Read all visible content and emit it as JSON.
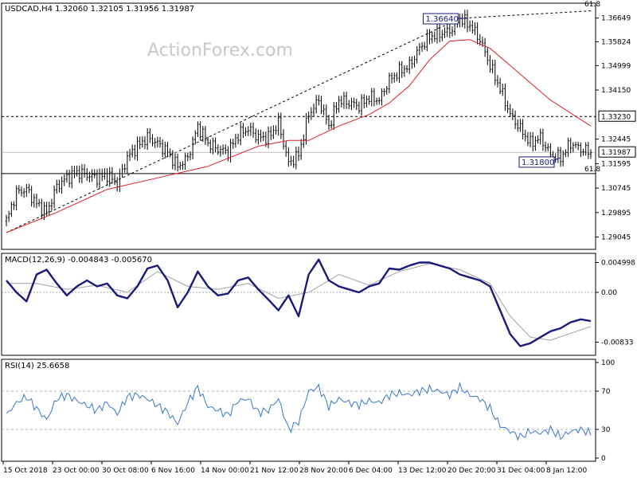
{
  "header": {
    "symbol_line": "USDCAD,H4  1.32060 1.32105 1.31956 1.31987",
    "watermark": "ActionForex.com"
  },
  "colors": {
    "candle": "#000000",
    "ma": "#e0202a",
    "macd": "#1a1a7a",
    "signal": "#a0a0a0",
    "rsi": "#3a78c8",
    "trendline": "#000000",
    "level_box_border": "#1a1a7a"
  },
  "chart_data": [
    {
      "type": "line",
      "title": "USDCAD,H4",
      "panel": "price",
      "ylim": [
        1.287,
        1.37
      ],
      "y_ticks": [
        "1.36649",
        "1.35824",
        "1.34999",
        "1.34150",
        "1.33230",
        "1.32445",
        "1.31987",
        "1.31595",
        "1.30745",
        "1.29895",
        "1.29045"
      ],
      "x_ticks": [
        "15 Oct 2018",
        "23 Oct 00:00",
        "30 Oct 08:00",
        "6 Nov 16:00",
        "14 Nov 00:00",
        "21 Nov 12:00",
        "28 Nov 20:00",
        "6 Dec 04:00",
        "13 Dec 12:00",
        "20 Dec 20:00",
        "31 Dec 04:00",
        "8 Jan 12:00"
      ],
      "series": [
        {
          "kind": "close",
          "x": [
            0,
            4,
            8,
            12,
            16,
            20,
            24,
            28,
            32,
            36,
            40,
            44,
            48,
            52,
            56,
            60,
            64,
            68,
            72,
            76,
            80,
            84,
            88,
            92,
            96,
            100,
            104,
            108,
            112,
            116,
            120,
            124,
            128,
            132,
            136,
            140,
            144,
            148,
            152,
            156,
            160,
            164,
            168,
            172,
            176,
            180,
            184,
            188,
            192,
            196,
            200,
            204,
            208,
            212,
            216,
            220,
            224,
            228,
            232
          ],
          "values": [
            1.296,
            1.306,
            1.307,
            1.302,
            1.299,
            1.308,
            1.311,
            1.313,
            1.312,
            1.311,
            1.312,
            1.309,
            1.318,
            1.322,
            1.325,
            1.323,
            1.32,
            1.315,
            1.318,
            1.329,
            1.323,
            1.321,
            1.32,
            1.326,
            1.328,
            1.325,
            1.325,
            1.33,
            1.316,
            1.319,
            1.333,
            1.338,
            1.329,
            1.338,
            1.337,
            1.336,
            1.339,
            1.338,
            1.345,
            1.348,
            1.35,
            1.356,
            1.36,
            1.361,
            1.362,
            1.3664,
            1.364,
            1.359,
            1.35,
            1.342,
            1.333,
            1.328,
            1.323,
            1.325,
            1.319,
            1.318,
            1.323,
            1.321,
            1.3199
          ]
        },
        {
          "kind": "moving_average",
          "x": [
            0,
            20,
            40,
            60,
            80,
            100,
            112,
            120,
            132,
            144,
            152,
            160,
            168,
            176,
            184,
            192,
            200,
            208,
            216,
            232
          ],
          "values": [
            1.292,
            1.299,
            1.307,
            1.311,
            1.315,
            1.322,
            1.324,
            1.324,
            1.329,
            1.333,
            1.337,
            1.343,
            1.352,
            1.3585,
            1.359,
            1.356,
            1.35,
            1.344,
            1.338,
            1.329
          ]
        }
      ],
      "annotations": [
        {
          "label": "1.36640",
          "price": 1.3664
        },
        {
          "label": "1.31800",
          "price": 1.318
        },
        {
          "label": "61.8",
          "price": 1.369,
          "note": "top"
        },
        {
          "label": "61.8",
          "price": 1.3125,
          "note": "lower"
        },
        {
          "label": "1.33230",
          "price": 1.3323,
          "kind": "level"
        },
        {
          "label": "1.31987",
          "price": 1.31987,
          "kind": "current"
        }
      ]
    },
    {
      "type": "line",
      "title": "MACD(12,26,9) -0.004843 -0.005670",
      "panel": "macd",
      "ylim": [
        -0.01,
        0.006
      ],
      "y_ticks": [
        "0.004998",
        "0.00",
        "-0.00833"
      ],
      "series": [
        {
          "name": "MACD",
          "x": [
            0,
            4,
            8,
            12,
            16,
            20,
            24,
            28,
            32,
            36,
            40,
            44,
            48,
            52,
            56,
            60,
            64,
            68,
            72,
            76,
            80,
            84,
            88,
            92,
            96,
            100,
            104,
            108,
            112,
            116,
            120,
            124,
            128,
            132,
            136,
            140,
            144,
            148,
            152,
            156,
            160,
            164,
            168,
            172,
            176,
            180,
            184,
            188,
            192,
            196,
            200,
            204,
            208,
            212,
            216,
            220,
            224,
            228,
            232
          ],
          "values": [
            0.002,
            0.0,
            -0.0015,
            0.003,
            0.0038,
            0.0015,
            -0.0005,
            0.001,
            0.002,
            0.001,
            0.0015,
            -0.0005,
            -0.001,
            0.001,
            0.004,
            0.0045,
            0.002,
            -0.0025,
            0.0,
            0.0035,
            0.001,
            -0.0005,
            -0.0002,
            0.002,
            0.0025,
            0.0005,
            -0.0012,
            -0.003,
            -0.0005,
            -0.004,
            0.003,
            0.0055,
            0.002,
            0.001,
            0.0005,
            0.0,
            0.001,
            0.0015,
            0.004,
            0.0038,
            0.0045,
            0.005,
            0.005,
            0.0045,
            0.004,
            0.003,
            0.0025,
            0.002,
            0.001,
            -0.003,
            -0.007,
            -0.009,
            -0.0085,
            -0.0075,
            -0.0065,
            -0.006,
            -0.005,
            -0.0045,
            -0.0048
          ]
        },
        {
          "name": "Signal",
          "x": [
            0,
            12,
            24,
            36,
            48,
            60,
            72,
            84,
            96,
            108,
            120,
            132,
            144,
            156,
            168,
            180,
            192,
            200,
            208,
            216,
            232
          ],
          "values": [
            0.0015,
            0.0015,
            0.0005,
            0.0012,
            0.0,
            0.0035,
            0.001,
            0.0005,
            0.0015,
            -0.001,
            0.0,
            0.003,
            0.0012,
            0.0035,
            0.0048,
            0.0038,
            0.0015,
            -0.004,
            -0.0075,
            -0.008,
            -0.0057
          ]
        }
      ]
    },
    {
      "type": "line",
      "title": "RSI(14) 25.6658",
      "panel": "rsi",
      "ylim": [
        0,
        100
      ],
      "y_ticks": [
        "100",
        "70",
        "30",
        "0"
      ],
      "series": [
        {
          "name": "RSI",
          "x": [
            0,
            4,
            8,
            12,
            16,
            20,
            24,
            28,
            32,
            36,
            40,
            44,
            48,
            52,
            56,
            60,
            64,
            68,
            72,
            76,
            80,
            84,
            88,
            92,
            96,
            100,
            104,
            108,
            112,
            116,
            120,
            124,
            128,
            132,
            136,
            140,
            144,
            148,
            152,
            156,
            160,
            164,
            168,
            172,
            176,
            180,
            184,
            188,
            192,
            196,
            200,
            204,
            208,
            212,
            216,
            220,
            224,
            228,
            232
          ],
          "values": [
            45,
            58,
            64,
            52,
            40,
            62,
            66,
            60,
            55,
            50,
            58,
            46,
            64,
            66,
            62,
            55,
            48,
            36,
            58,
            74,
            54,
            50,
            45,
            60,
            62,
            48,
            50,
            62,
            30,
            38,
            70,
            74,
            54,
            62,
            58,
            56,
            60,
            58,
            66,
            68,
            66,
            70,
            72,
            70,
            66,
            74,
            66,
            62,
            52,
            34,
            28,
            22,
            28,
            26,
            30,
            22,
            28,
            30,
            26
          ]
        }
      ]
    }
  ],
  "panels": {
    "macd_label": "MACD(12,26,9) -0.004843 -0.005670",
    "rsi_label": "RSI(14) 25.6658"
  }
}
